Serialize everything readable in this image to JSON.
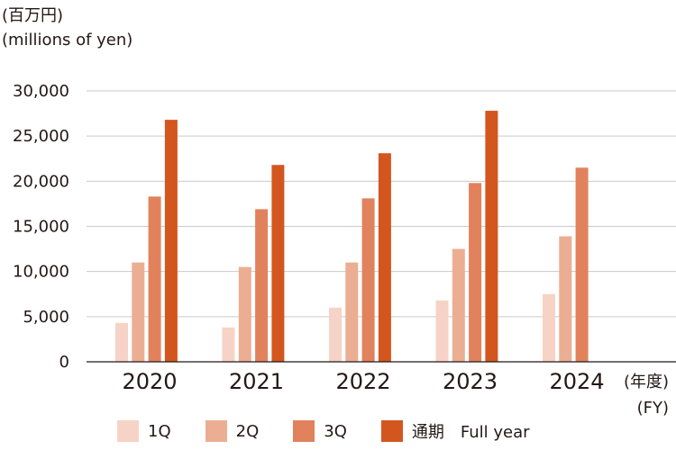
{
  "unit_label": {
    "line1": "(百万円)",
    "line2": "(millions of yen)"
  },
  "x_axis_suffix": {
    "line1": "(年度)",
    "line2": "(FY)"
  },
  "legend": [
    {
      "label": "1Q",
      "color": "#f6d3c6"
    },
    {
      "label": "2Q",
      "color": "#ebae92"
    },
    {
      "label": "3Q",
      "color": "#e1825d"
    },
    {
      "label": "通期　Full year",
      "color": "#d3561f"
    }
  ],
  "chart_data": {
    "type": "bar",
    "categories": [
      "2020",
      "2021",
      "2022",
      "2023",
      "2024"
    ],
    "series": [
      {
        "name": "1Q",
        "color": "#f6d3c6",
        "values": [
          4300,
          3800,
          6000,
          6800,
          7500
        ]
      },
      {
        "name": "2Q",
        "color": "#ebae92",
        "values": [
          11000,
          10500,
          11000,
          12500,
          13900
        ]
      },
      {
        "name": "3Q",
        "color": "#e1825d",
        "values": [
          18300,
          16900,
          18100,
          19800,
          21500
        ]
      },
      {
        "name": "通期　Full year",
        "color": "#d3561f",
        "values": [
          26800,
          21800,
          23100,
          27800,
          null
        ]
      }
    ],
    "ylim": [
      0,
      30000
    ],
    "yticks": [
      0,
      5000,
      10000,
      15000,
      20000,
      25000,
      30000
    ],
    "ytick_labels": [
      "0",
      "5,000",
      "10,000",
      "15,000",
      "20,000",
      "25,000",
      "30,000"
    ],
    "ylabel": "(百万円) (millions of yen)",
    "xlabel": "(年度) (FY)",
    "grid": true,
    "legend_position": "bottom"
  }
}
